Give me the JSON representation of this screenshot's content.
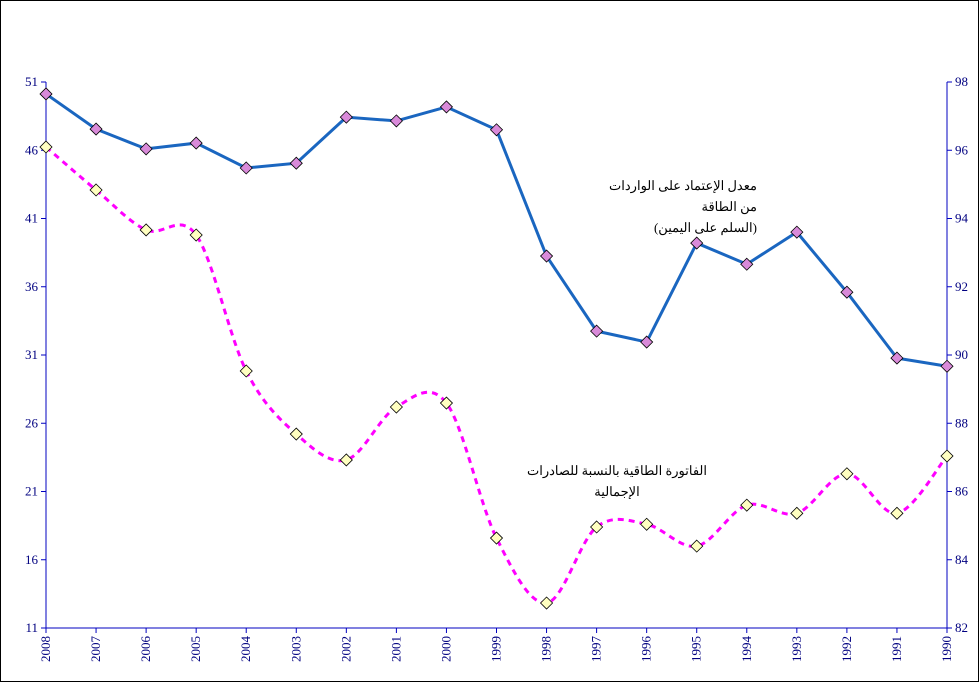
{
  "chart_data": {
    "type": "line",
    "categories": [
      "2008",
      "2007",
      "2006",
      "2005",
      "2004",
      "2003",
      "2002",
      "2001",
      "2000",
      "1999",
      "1998",
      "1997",
      "1996",
      "1995",
      "1994",
      "1993",
      "1992",
      "1991",
      "1990"
    ],
    "series": [
      {
        "color": "#1a66c0",
        "marker_color": "#d98ad9",
        "axis": "y2",
        "dashed": false,
        "values": [
          97.65,
          96.62,
          96.04,
          96.21,
          95.48,
          95.62,
          96.97,
          96.86,
          97.27,
          96.6,
          92.9,
          90.7,
          90.38,
          93.28,
          92.66,
          93.6,
          91.84,
          89.91,
          89.67
        ]
      },
      {
        "color": "#ff00ff",
        "marker_color": "#ffffc0",
        "dashed": true,
        "values": [
          46.24,
          43.09,
          40.16,
          39.79,
          29.83,
          25.21,
          23.31,
          27.19,
          27.48,
          17.59,
          12.83,
          18.4,
          18.6,
          17.0,
          20.0,
          19.4,
          22.3,
          19.4,
          23.6
        ]
      }
    ],
    "ylim": [
      11,
      51
    ],
    "yticks": [
      11,
      16,
      21,
      26,
      31,
      36,
      41,
      46,
      51
    ],
    "y2lim": [
      82,
      98
    ],
    "y2ticks": [
      82,
      84,
      86,
      88,
      90,
      92,
      94,
      96,
      98
    ],
    "annotations": [
      [
        "معدل  الإعتماد على الواردات",
        "من الطاقة",
        "(السلم على اليمين)"
      ],
      [
        "الفاتورة الطاقية بالنسبة للصادرات",
        "الإجمالية"
      ]
    ]
  }
}
